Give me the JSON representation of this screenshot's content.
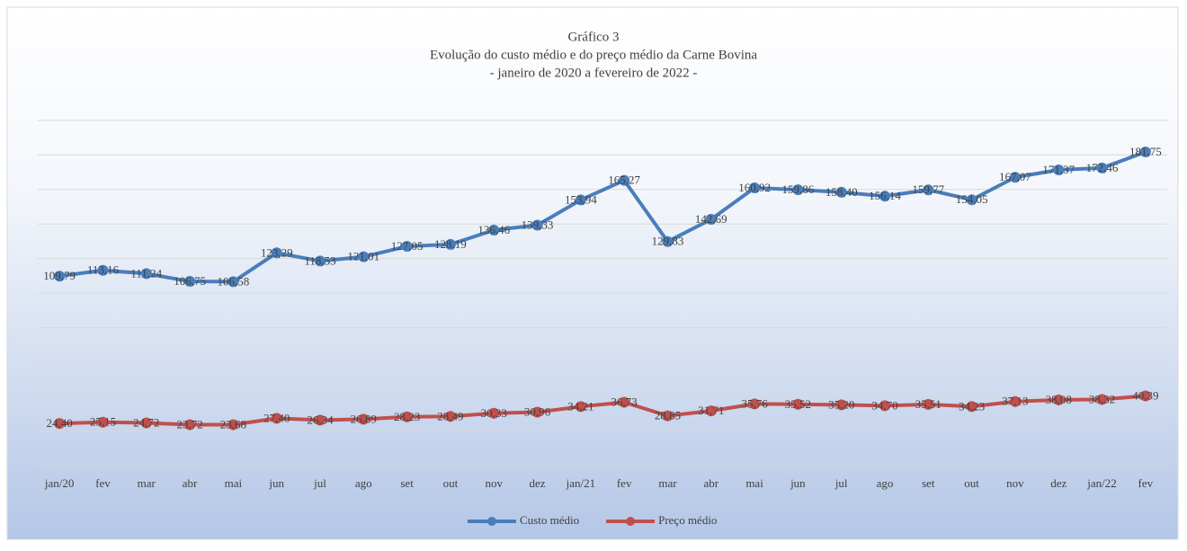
{
  "chart_data": {
    "type": "line",
    "title": "Gráfico 3",
    "subtitle": [
      "Evolução do custo médio e do preço médio da Carne Bovina",
      "- janeiro de 2020 a fevereiro de 2022 -"
    ],
    "categories": [
      "jan/20",
      "fev",
      "mar",
      "abr",
      "mai",
      "jun",
      "jul",
      "ago",
      "set",
      "out",
      "nov",
      "dez",
      "jan/21",
      "fev",
      "mar",
      "abr",
      "mai",
      "jun",
      "jul",
      "ago",
      "set",
      "out",
      "nov",
      "dez",
      "jan/22",
      "fev"
    ],
    "series": [
      {
        "name": "Custo médio",
        "color": "#4a7ebb",
        "values": [
          109.79,
          113.16,
          111.24,
          106.75,
          106.58,
          123.29,
          118.53,
          121.01,
          127.05,
          128.19,
          136.46,
          139.33,
          153.94,
          165.27,
          129.83,
          142.69,
          160.92,
          159.86,
          158.4,
          156.14,
          159.77,
          154.05,
          167.07,
          171.37,
          172.46,
          181.75
        ],
        "value_labels": [
          "109,79",
          "113,16",
          "111,24",
          "106,75",
          "106,58",
          "123,29",
          "118,53",
          "121,01",
          "127,05",
          "128,19",
          "136,46",
          "139,33",
          "153,94",
          "165,27",
          "129,83",
          "142,69",
          "160,92",
          "159,86",
          "158,40",
          "156,14",
          "159,77",
          "154,05",
          "167,07",
          "171,37",
          "172,46",
          "181,75"
        ]
      },
      {
        "name": "Preço médio",
        "color": "#c0504d",
        "values": [
          24.4,
          25.15,
          24.72,
          23.72,
          23.68,
          27.4,
          26.34,
          26.89,
          28.23,
          28.49,
          30.33,
          30.96,
          34.21,
          36.73,
          28.85,
          31.71,
          35.76,
          35.52,
          35.2,
          34.7,
          35.51,
          34.23,
          37.13,
          38.08,
          38.32,
          40.39
        ],
        "value_labels": [
          "24,40",
          "25,15",
          "24,72",
          "23,72",
          "23,68",
          "27,40",
          "26,34",
          "26,89",
          "28,23",
          "28,49",
          "30,33",
          "30,96",
          "34,21",
          "36,73",
          "28,85",
          "31,71",
          "35,76",
          "35,52",
          "35,20",
          "34,70",
          "35,51",
          "34,23",
          "37,13",
          "38,08",
          "38,32",
          "40,39"
        ]
      }
    ],
    "ylim": [
      0,
      200
    ],
    "yticks": [
      0,
      20,
      40,
      60,
      80,
      100,
      120,
      140,
      160,
      180,
      200
    ],
    "grid": true,
    "legend": "bottom"
  }
}
